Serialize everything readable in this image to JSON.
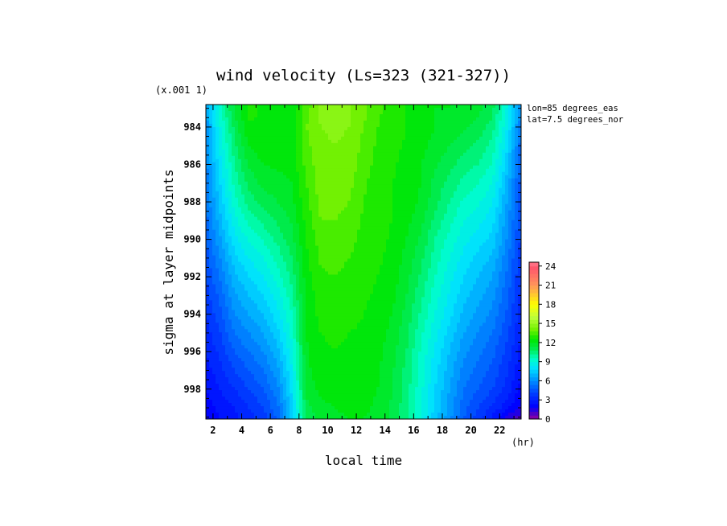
{
  "chart_data": {
    "type": "heatmap",
    "title": "wind velocity (Ls=323 (321-327))",
    "xlabel": "local time",
    "xunit": "(hr)",
    "ylabel": "sigma at layer midpoints",
    "yscale_note": "(x.001 1)",
    "annotations": [
      "lon=85 degrees_eas",
      "lat=7.5 degrees_nor"
    ],
    "x_range": [
      1.5,
      23.5
    ],
    "y_range": [
      982.8,
      999.6
    ],
    "x_ticks": [
      2,
      4,
      6,
      8,
      10,
      12,
      14,
      16,
      18,
      20,
      22
    ],
    "y_ticks": [
      984,
      986,
      988,
      990,
      992,
      994,
      996,
      998
    ],
    "colorbar": {
      "range": [
        0,
        24.6
      ],
      "ticks": [
        0,
        3,
        6,
        9,
        12,
        15,
        18,
        21,
        24
      ]
    },
    "grid": false,
    "legend": "colorbar-right",
    "x": [
      1.5,
      2.5,
      3.5,
      4.5,
      5.5,
      6.5,
      7.5,
      8.5,
      9.5,
      10.5,
      11.5,
      12.5,
      13.5,
      14.5,
      15.5,
      16.5,
      17.5,
      18.5,
      19.5,
      20.5,
      21.5,
      22.5,
      23.5
    ],
    "y": [
      983,
      984,
      985,
      986,
      987,
      988,
      989,
      990,
      991,
      992,
      993,
      994,
      995,
      996,
      997,
      998,
      999,
      999.6
    ],
    "z": [
      [
        6.5,
        9.5,
        11.5,
        12.8,
        12.5,
        12.2,
        12.0,
        13.5,
        14.5,
        14.5,
        14.5,
        14.0,
        13.3,
        13.0,
        12.6,
        12.3,
        12.0,
        12.0,
        11.8,
        11.6,
        11.0,
        9.0,
        6.0
      ],
      [
        6.2,
        9.0,
        11.0,
        12.5,
        12.6,
        12.4,
        12.2,
        13.8,
        14.4,
        14.5,
        14.4,
        13.8,
        13.2,
        13.0,
        12.6,
        12.3,
        12.0,
        11.8,
        11.5,
        11.2,
        10.5,
        8.5,
        5.5
      ],
      [
        6.0,
        8.6,
        10.6,
        12.0,
        12.4,
        12.3,
        12.2,
        13.6,
        14.3,
        14.4,
        14.3,
        13.6,
        13.1,
        12.8,
        12.5,
        12.2,
        11.8,
        11.4,
        11.0,
        10.6,
        10.0,
        8.0,
        5.0
      ],
      [
        5.8,
        8.2,
        10.2,
        11.5,
        12.0,
        12.1,
        12.2,
        13.4,
        14.2,
        14.3,
        14.2,
        13.5,
        13.0,
        12.7,
        12.4,
        12.0,
        11.5,
        11.0,
        10.5,
        10.2,
        9.5,
        7.5,
        4.7
      ],
      [
        5.6,
        7.8,
        9.8,
        11.0,
        11.6,
        11.8,
        12.0,
        13.2,
        14.1,
        14.2,
        14.0,
        13.3,
        12.9,
        12.6,
        12.4,
        12.0,
        11.2,
        10.6,
        10.0,
        9.6,
        9.0,
        7.0,
        4.5
      ],
      [
        5.4,
        7.4,
        9.3,
        10.5,
        11.0,
        11.4,
        11.8,
        13.0,
        14.0,
        14.0,
        13.8,
        13.2,
        12.9,
        12.6,
        12.4,
        11.9,
        11.0,
        10.2,
        9.5,
        9.1,
        8.5,
        6.6,
        4.3
      ],
      [
        5.1,
        7.0,
        8.8,
        9.8,
        10.4,
        10.9,
        11.5,
        12.8,
        13.8,
        13.8,
        13.6,
        13.1,
        12.8,
        12.6,
        12.2,
        11.6,
        10.6,
        9.8,
        9.0,
        8.6,
        8.0,
        6.3,
        4.2
      ],
      [
        4.8,
        6.5,
        8.2,
        9.1,
        9.7,
        10.4,
        11.2,
        12.6,
        13.5,
        13.6,
        13.4,
        13.0,
        12.8,
        12.5,
        12.0,
        11.3,
        10.2,
        9.4,
        8.6,
        8.1,
        7.6,
        6.0,
        4.0
      ],
      [
        4.5,
        6.0,
        7.6,
        8.4,
        9.0,
        9.8,
        10.8,
        12.5,
        13.3,
        13.4,
        13.2,
        12.9,
        12.7,
        12.4,
        11.8,
        11.0,
        9.9,
        9.0,
        8.2,
        7.6,
        7.1,
        5.6,
        3.8
      ],
      [
        4.2,
        5.5,
        7.0,
        7.8,
        8.4,
        9.3,
        10.4,
        12.3,
        13.1,
        13.2,
        13.0,
        12.8,
        12.6,
        12.3,
        11.6,
        10.7,
        9.6,
        8.6,
        7.8,
        7.2,
        6.6,
        5.3,
        3.6
      ],
      [
        3.9,
        5.0,
        6.5,
        7.2,
        7.8,
        8.7,
        10.0,
        12.2,
        12.9,
        13.0,
        12.9,
        12.7,
        12.5,
        12.2,
        11.4,
        10.4,
        9.3,
        8.3,
        7.4,
        6.8,
        6.2,
        5.0,
        3.4
      ],
      [
        3.6,
        4.6,
        6.0,
        6.6,
        7.2,
        8.2,
        9.6,
        12.1,
        12.8,
        12.9,
        12.8,
        12.6,
        12.4,
        12.0,
        11.2,
        10.1,
        9.0,
        8.0,
        7.0,
        6.4,
        5.8,
        4.7,
        3.2
      ],
      [
        3.3,
        4.2,
        5.4,
        6.0,
        6.6,
        7.6,
        9.2,
        12.0,
        12.6,
        12.7,
        12.6,
        12.5,
        12.3,
        11.8,
        11.0,
        9.8,
        8.6,
        7.6,
        6.6,
        6.0,
        5.4,
        4.4,
        3.0
      ],
      [
        3.0,
        3.8,
        4.8,
        5.4,
        6.0,
        7.0,
        8.8,
        11.9,
        12.5,
        12.6,
        12.5,
        12.4,
        12.2,
        11.6,
        10.8,
        9.5,
        8.3,
        7.2,
        6.2,
        5.6,
        5.0,
        4.0,
        2.8
      ],
      [
        2.7,
        3.4,
        4.2,
        4.8,
        5.4,
        6.4,
        8.4,
        11.8,
        12.4,
        12.5,
        12.4,
        12.3,
        12.1,
        11.5,
        10.6,
        9.3,
        8.0,
        6.9,
        5.8,
        5.2,
        4.6,
        3.7,
        2.5
      ],
      [
        2.4,
        3.0,
        3.6,
        4.2,
        4.8,
        5.8,
        8.0,
        11.6,
        12.2,
        12.3,
        12.3,
        12.2,
        12.0,
        11.4,
        10.5,
        9.2,
        7.8,
        6.6,
        5.4,
        4.8,
        4.2,
        3.4,
        2.2
      ],
      [
        2.1,
        2.6,
        3.0,
        3.6,
        4.2,
        5.2,
        7.6,
        11.2,
        11.8,
        12.0,
        12.1,
        12.1,
        11.9,
        11.3,
        10.4,
        9.0,
        7.6,
        6.4,
        5.0,
        4.2,
        3.5,
        2.6,
        1.6
      ],
      [
        2.0,
        2.4,
        2.8,
        3.3,
        3.9,
        4.9,
        7.3,
        10.9,
        11.6,
        11.9,
        12.0,
        12.0,
        11.8,
        11.2,
        10.3,
        8.9,
        7.5,
        6.2,
        4.8,
        3.8,
        2.8,
        1.4,
        0.9
      ]
    ]
  }
}
